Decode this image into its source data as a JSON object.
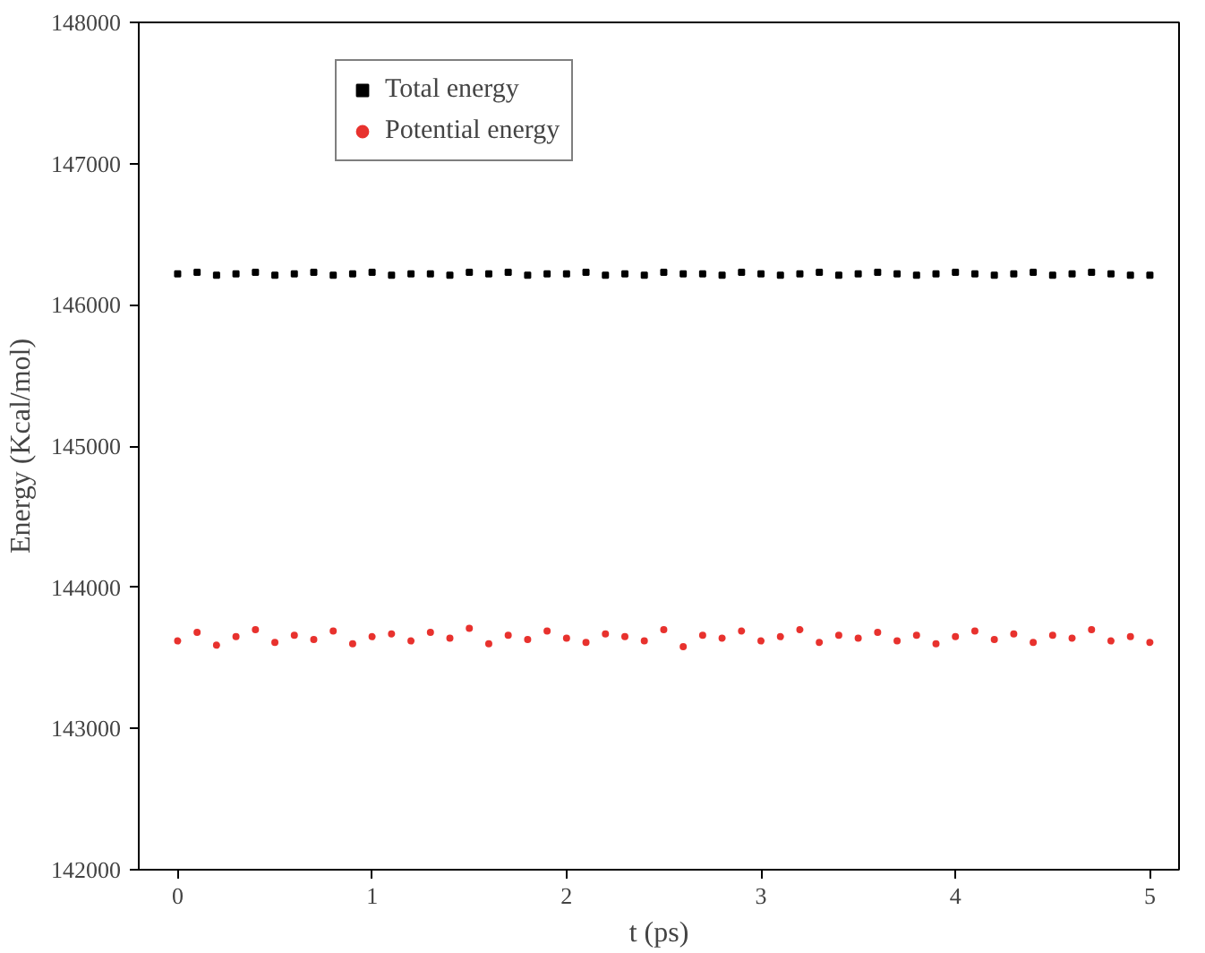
{
  "chart_data": {
    "type": "scatter",
    "xlabel": "t (ps)",
    "ylabel": "Energy (Kcal/mol)",
    "x": [
      0,
      0.1,
      0.2,
      0.3,
      0.4,
      0.5,
      0.6,
      0.7,
      0.8,
      0.9,
      1,
      1.1,
      1.2,
      1.3,
      1.4,
      1.5,
      1.6,
      1.7,
      1.8,
      1.9,
      2,
      2.1,
      2.2,
      2.3,
      2.4,
      2.5,
      2.6,
      2.7,
      2.8,
      2.9,
      3,
      3.1,
      3.2,
      3.3,
      3.4,
      3.5,
      3.6,
      3.7,
      3.8,
      3.9,
      4,
      4.1,
      4.2,
      4.3,
      4.4,
      4.5,
      4.6,
      4.7,
      4.8,
      4.9,
      5
    ],
    "series": [
      {
        "name": "Total energy",
        "color": "#000000",
        "marker": "square",
        "values": [
          146220,
          146230,
          146210,
          146220,
          146230,
          146210,
          146220,
          146230,
          146210,
          146220,
          146230,
          146210,
          146220,
          146220,
          146210,
          146230,
          146220,
          146230,
          146210,
          146220,
          146220,
          146230,
          146210,
          146220,
          146210,
          146230,
          146220,
          146220,
          146210,
          146230,
          146220,
          146210,
          146220,
          146230,
          146210,
          146220,
          146230,
          146220,
          146210,
          146220,
          146230,
          146220,
          146210,
          146220,
          146230,
          146210,
          146220,
          146230,
          146220,
          146210,
          146210
        ]
      },
      {
        "name": "Potential energy",
        "color": "#e8322e",
        "marker": "circle",
        "values": [
          143620,
          143680,
          143590,
          143650,
          143700,
          143610,
          143660,
          143630,
          143690,
          143600,
          143650,
          143670,
          143620,
          143680,
          143640,
          143710,
          143600,
          143660,
          143630,
          143690,
          143640,
          143610,
          143670,
          143650,
          143620,
          143700,
          143580,
          143660,
          143640,
          143690,
          143620,
          143650,
          143700,
          143610,
          143660,
          143640,
          143680,
          143620,
          143660,
          143600,
          143650,
          143690,
          143630,
          143670,
          143610,
          143660,
          143640,
          143700,
          143620,
          143650,
          143610
        ]
      }
    ],
    "xlim": [
      -0.2,
      5.15
    ],
    "ylim": [
      142000,
      148000
    ],
    "xticks": [
      0,
      1,
      2,
      3,
      4,
      5
    ],
    "yticks": [
      142000,
      143000,
      144000,
      145000,
      146000,
      147000,
      148000
    ],
    "grid": false,
    "legend": "top left"
  }
}
